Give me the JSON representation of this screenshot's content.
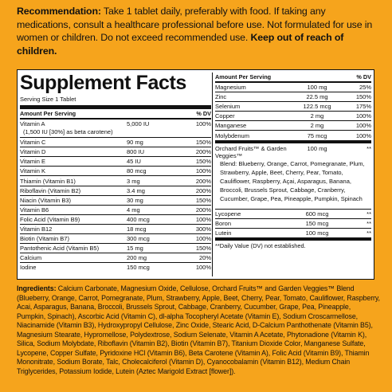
{
  "recommendation": {
    "label": "Recommendation:",
    "text": " Take 1 tablet daily, preferably with food. If taking any medications, consult a healthcare professional before use. Not formulated for use in women or children. Do not exceed recommended use. ",
    "warning": "Keep out of reach of children."
  },
  "facts": {
    "title": "Supplement Facts",
    "serving_size": "Serving Size 1 Tablet",
    "header": {
      "amount": "Amount Per Serving",
      "dv": "% DV"
    },
    "left_rows": [
      {
        "name": "Vitamin A",
        "amount": "5,000 IU",
        "dv": "100%"
      },
      {
        "name": "Vitamin C",
        "amount": "90 mg",
        "dv": "150%"
      },
      {
        "name": "Vitamin D",
        "amount": "800 IU",
        "dv": "200%"
      },
      {
        "name": "Vitamin E",
        "amount": "45 IU",
        "dv": "150%"
      },
      {
        "name": "Vitamin K",
        "amount": "80 mcg",
        "dv": "100%"
      },
      {
        "name": "Thiamin (Vitamin B1)",
        "amount": "3 mg",
        "dv": "200%"
      },
      {
        "name": "Riboflavin (Vitamin B2)",
        "amount": "3.4 mg",
        "dv": "200%"
      },
      {
        "name": "Niacin (Vitamin B3)",
        "amount": "30 mg",
        "dv": "150%"
      },
      {
        "name": "Vitamin B6",
        "amount": "4 mg",
        "dv": "200%"
      },
      {
        "name": "Folic Acid (Vitamin B9)",
        "amount": "400 mcg",
        "dv": "100%"
      },
      {
        "name": "Vitamin B12",
        "amount": "18 mcg",
        "dv": "300%"
      },
      {
        "name": "Biotin (Vitamin B7)",
        "amount": "300 mcg",
        "dv": "100%"
      },
      {
        "name": "Pantothenic Acid (Vitamin B5)",
        "amount": "15 mg",
        "dv": "150%"
      },
      {
        "name": "Calcium",
        "amount": "200 mg",
        "dv": "20%"
      },
      {
        "name": "Iodine",
        "amount": "150 mcg",
        "dv": "100%"
      }
    ],
    "vitamin_a_note": "(1,500 IU [30%] as beta carotene)",
    "right_rows": [
      {
        "name": "Magnesium",
        "amount": "100 mg",
        "dv": "25%"
      },
      {
        "name": "Zinc",
        "amount": "22.5 mg",
        "dv": "150%"
      },
      {
        "name": "Selenium",
        "amount": "122.5 mcg",
        "dv": "175%"
      },
      {
        "name": "Copper",
        "amount": "2 mg",
        "dv": "100%"
      },
      {
        "name": "Manganese",
        "amount": "2 mg",
        "dv": "100%"
      },
      {
        "name": "Molybdenum",
        "amount": "75 mcg",
        "dv": "100%"
      }
    ],
    "blend": {
      "name": "Orchard Fruits™ & Garden Veggies™",
      "amount": "100 mg",
      "dv": "**",
      "description": "Blend: Blueberry, Orange, Carrot, Pomegranate, Plum, Strawberry, Apple, Beet, Cherry, Pear, Tomato, Cauliflower, Raspberry, Açai, Asparagus, Banana, Broccoli, Brussels Sprout, Cabbage, Cranberry, Cucumber, Grape, Pea, Pineapple, Pumpkin, Spinach"
    },
    "right_rows_2": [
      {
        "name": "Lycopene",
        "amount": "600 mcg",
        "dv": "**"
      },
      {
        "name": "Boron",
        "amount": "150 mcg",
        "dv": "**"
      },
      {
        "name": "Lutein",
        "amount": "100 mcg",
        "dv": "**"
      }
    ],
    "footnote": "**Daily Value (DV) not established."
  },
  "ingredients": {
    "label": "Ingredients:",
    "text": " Calcium Carbonate, Magnesium Oxide, Cellulose, Orchard Fruits™ and Garden Veggies™ Blend (Blueberry, Orange, Carrot, Pomegranate, Plum, Strawberry, Apple, Beet, Cherry, Pear, Tomato, Cauliflower, Raspberry, Acai, Asparagus, Banana, Broccoli, Brussels Sprout, Cabbage, Cranberry, Cucumber, Grape, Pea, Pineapple, Pumpkin, Spinach), Ascorbic Acid (Vitamin C), dl-alpha Tocopheryl Acetate (Vitamin E), Sodium Croscarmellose, Niacinamide (Vitamin B3), Hydroxypropyl Cellulose, Zinc Oxide, Stearic Acid, D-Calcium Panthothenate (Vitamin B5), Magnesium Stearate, Hypromellose, Polydextrose, Sodium Selenate, Vitamin A Acetate, Phytonadione (Vitamin K), Silica, Sodium Molybdate, Riboflavin (Vitamin B2), Biotin (Vitamin B7), Titanium Dioxide Color, Manganese Sulfate, Lycopene, Copper Sulfate, Pyridoxine HCl (Vitamin B6), Beta Carotene (Vitamin A), Folic Acid (Vitamin B9), Thiamin Mononitrate, Sodium Borate, Talc, Cholecalciferol (Vitamin D), Cyanocobalamin (Vitamin B12), Medium Chain Triglycerides, Potassium Iodide, Lutein (Aztec Marigold Extract [flower])."
  }
}
